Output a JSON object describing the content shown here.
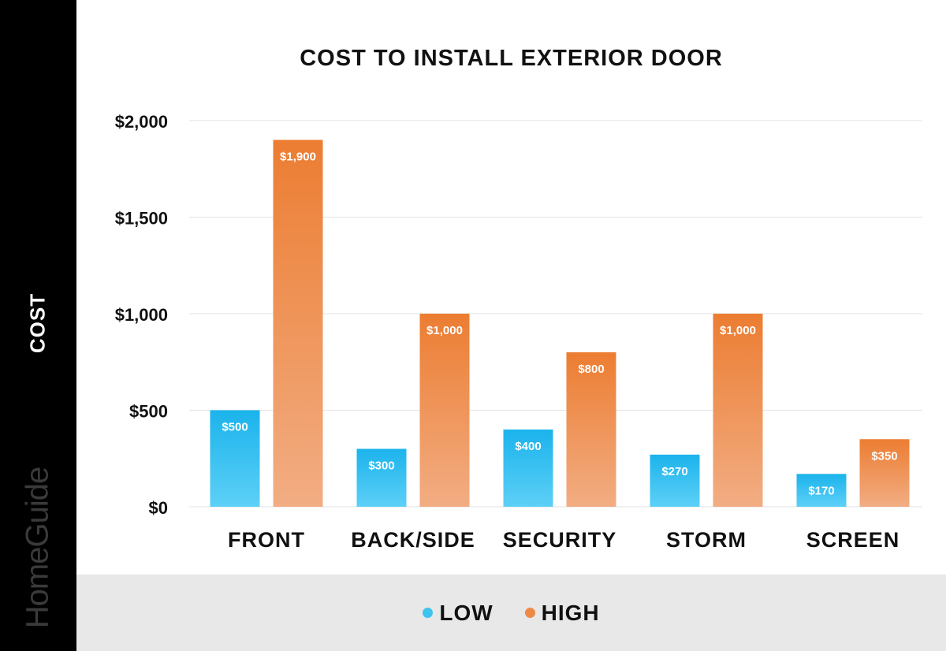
{
  "brand": "HomeGuide",
  "colors": {
    "low": "#3fc3ef",
    "high": "#ee8a45",
    "sidebar": "#000000",
    "legend_bg": "#e8e8e8",
    "grid": "#e3e3e3"
  },
  "chart_data": {
    "type": "bar",
    "title": "COST TO INSTALL EXTERIOR DOOR",
    "xlabel": "",
    "ylabel": "COST",
    "categories": [
      "FRONT",
      "BACK/SIDE",
      "SECURITY",
      "STORM",
      "SCREEN"
    ],
    "series": [
      {
        "name": "LOW",
        "values": [
          500,
          300,
          400,
          270,
          170
        ],
        "labels": [
          "$500",
          "$300",
          "$400",
          "$270",
          "$170"
        ]
      },
      {
        "name": "HIGH",
        "values": [
          1900,
          1000,
          800,
          1000,
          350
        ],
        "labels": [
          "$1,900",
          "$1,000",
          "$800",
          "$1,000",
          "$350"
        ]
      }
    ],
    "ylim": [
      0,
      2000
    ],
    "yticks": [
      0,
      500,
      1000,
      1500,
      2000
    ],
    "ytick_labels": [
      "$0",
      "$500",
      "$1,000",
      "$1,500",
      "$2,000"
    ],
    "grid": true,
    "legend": "bottom"
  }
}
